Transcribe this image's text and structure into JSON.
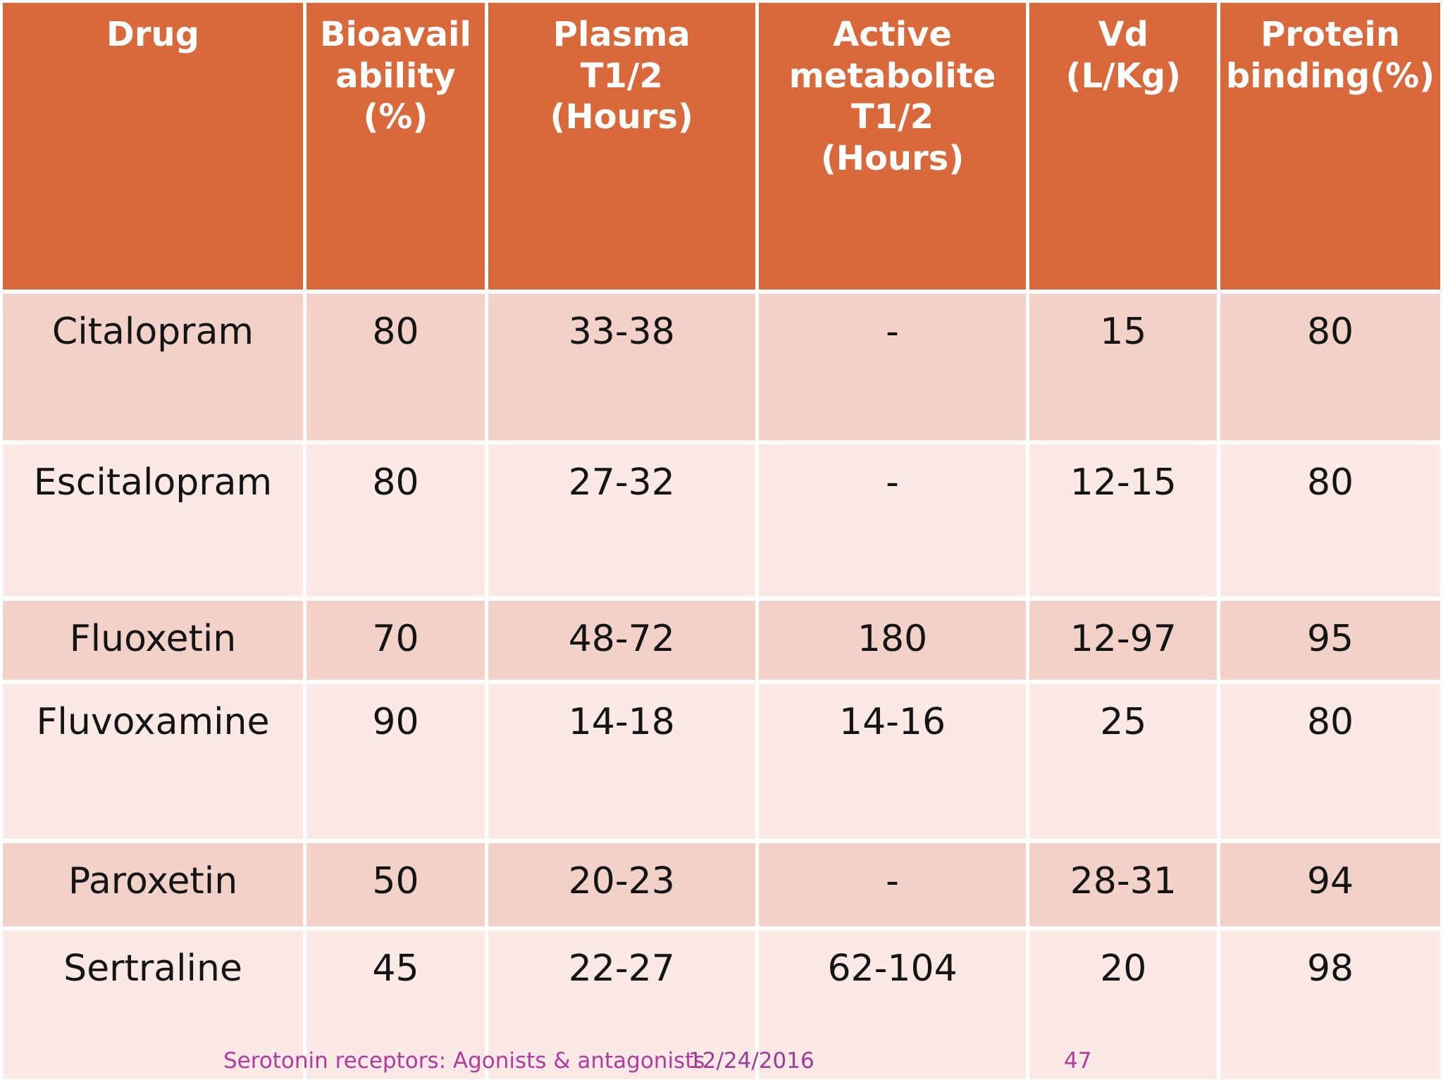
{
  "table": {
    "headers": [
      "Drug",
      "Bioavail\nability\n(%)",
      "Plasma\nT1/2\n(Hours)",
      "Active\nmetabolite\nT1/2\n(Hours)",
      "Vd\n(L/Kg)",
      "Protein\nbinding(%)"
    ],
    "rows": [
      {
        "cells": [
          "Citalopram",
          "80",
          "33-38",
          "-",
          "15",
          "80"
        ]
      },
      {
        "cells": [
          "Escitalopram",
          "80",
          "27-32",
          "-",
          "12-15",
          "80"
        ]
      },
      {
        "cells": [
          "Fluoxetin",
          "70",
          "48-72",
          "180",
          "12-97",
          "95"
        ]
      },
      {
        "cells": [
          "Fluvoxamine",
          "90",
          "14-18",
          "14-16",
          "25",
          "80"
        ]
      },
      {
        "cells": [
          "Paroxetin",
          "50",
          "20-23",
          "-",
          "28-31",
          "94"
        ]
      },
      {
        "cells": [
          "Sertraline",
          "45",
          "22-27",
          "62-104",
          "20",
          "98"
        ]
      }
    ]
  },
  "footer": {
    "title": "Serotonin receptors: Agonists & antagonists",
    "date": "12/24/2016",
    "page_number": "47"
  },
  "colors": {
    "header_bg": "#d9693a",
    "header_text": "#ffffff",
    "row_dark_bg": "#f2d1c9",
    "row_light_bg": "#fae9e5",
    "footer_magenta": "#b43aa0",
    "footer_date_purple": "#9c3d96",
    "grid_line": "#ffffff"
  }
}
